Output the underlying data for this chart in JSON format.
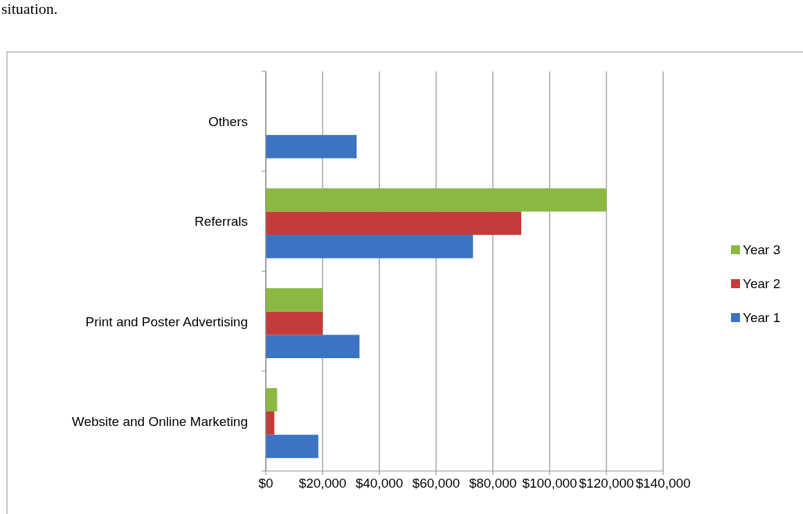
{
  "chart_data": {
    "type": "bar",
    "orientation": "horizontal",
    "categories": [
      "Others",
      "Referrals",
      "Print and Poster Advertising",
      "Website and Online Marketing"
    ],
    "series": [
      {
        "name": "Year 1",
        "color": "#3b74c3",
        "values": [
          32000,
          73000,
          33000,
          18500
        ]
      },
      {
        "name": "Year 2",
        "color": "#c43b3a",
        "values": [
          null,
          90000,
          20000,
          3000
        ]
      },
      {
        "name": "Year 3",
        "color": "#8cb842",
        "values": [
          null,
          120000,
          20000,
          4000
        ]
      }
    ],
    "xlim": [
      0,
      140000
    ],
    "xticks": [
      {
        "value": 0,
        "label": "$0"
      },
      {
        "value": 20000,
        "label": "$20,000"
      },
      {
        "value": 40000,
        "label": "$40,000"
      },
      {
        "value": 60000,
        "label": "$60,000"
      },
      {
        "value": 80000,
        "label": "$80,000"
      },
      {
        "value": 100000,
        "label": "$100,000"
      },
      {
        "value": 120000,
        "label": "$120,000"
      },
      {
        "value": 140000,
        "label": "$140,000"
      }
    ],
    "grid": "x",
    "legend": "right",
    "annotations": [
      "situation."
    ]
  }
}
